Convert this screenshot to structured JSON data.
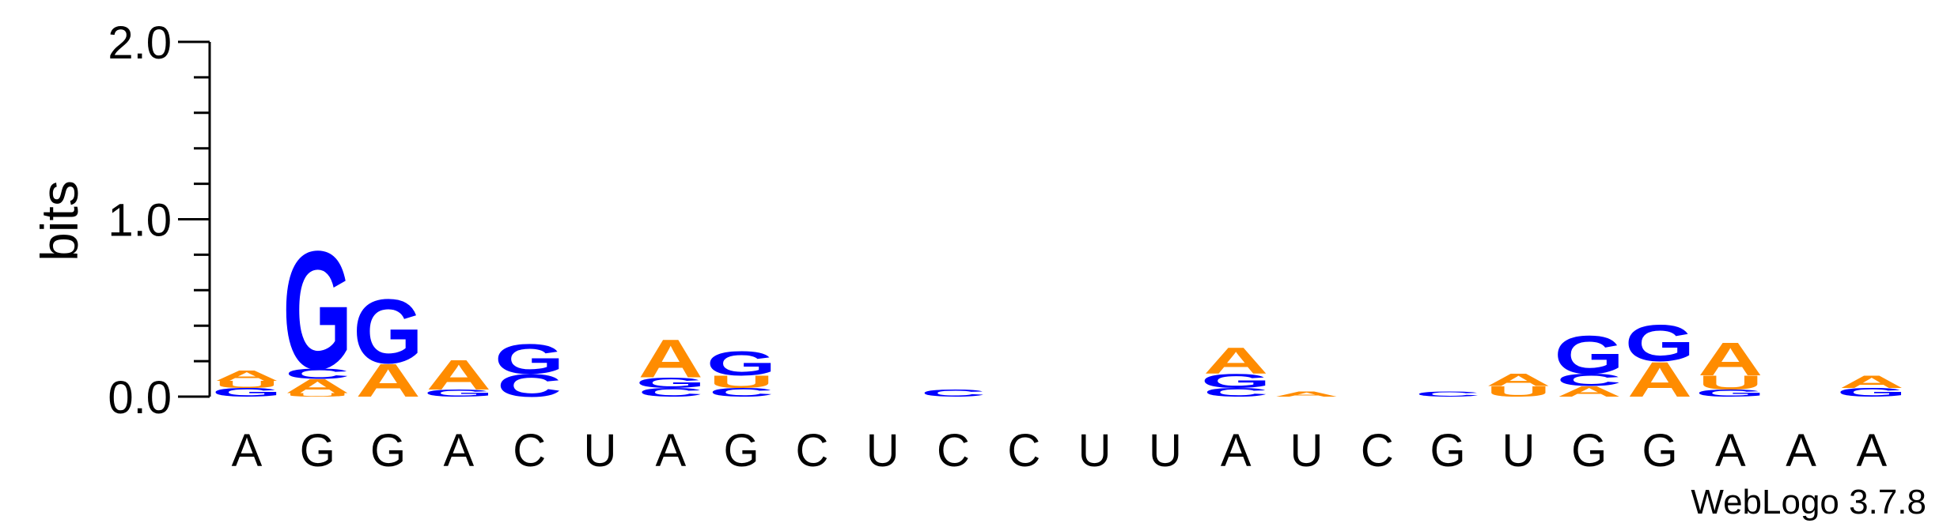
{
  "chart_data": {
    "type": "sequence-logo",
    "ylabel": "bits",
    "ylim": [
      0,
      2.0
    ],
    "yticks": [
      "0.0",
      "1.0",
      "2.0"
    ],
    "credit": "WebLogo 3.7.8",
    "colors": {
      "A": "#ff8c00",
      "U": "#ff8c00",
      "G": "#0000ff",
      "C": "#0000ff"
    },
    "positions": [
      {
        "label": "A",
        "stack": [
          {
            "letter": "G",
            "bits": 0.05
          },
          {
            "letter": "U",
            "bits": 0.04
          },
          {
            "letter": "A",
            "bits": 0.06
          }
        ]
      },
      {
        "label": "G",
        "stack": [
          {
            "letter": "U",
            "bits": 0.02
          },
          {
            "letter": "A",
            "bits": 0.08
          },
          {
            "letter": "C",
            "bits": 0.06
          },
          {
            "letter": "G",
            "bits": 0.68
          }
        ]
      },
      {
        "label": "G",
        "stack": [
          {
            "letter": "A",
            "bits": 0.19
          },
          {
            "letter": "G",
            "bits": 0.37
          }
        ]
      },
      {
        "label": "A",
        "stack": [
          {
            "letter": "G",
            "bits": 0.04
          },
          {
            "letter": "A",
            "bits": 0.17
          }
        ]
      },
      {
        "label": "C",
        "stack": [
          {
            "letter": "C",
            "bits": 0.13
          },
          {
            "letter": "G",
            "bits": 0.17
          }
        ]
      },
      {
        "label": "U",
        "stack": []
      },
      {
        "label": "A",
        "stack": [
          {
            "letter": "C",
            "bits": 0.05
          },
          {
            "letter": "G",
            "bits": 0.06
          },
          {
            "letter": "A",
            "bits": 0.22
          }
        ]
      },
      {
        "label": "G",
        "stack": [
          {
            "letter": "C",
            "bits": 0.05
          },
          {
            "letter": "U",
            "bits": 0.07
          },
          {
            "letter": "G",
            "bits": 0.14
          }
        ]
      },
      {
        "label": "C",
        "stack": []
      },
      {
        "label": "U",
        "stack": []
      },
      {
        "label": "C",
        "stack": [
          {
            "letter": "C",
            "bits": 0.04
          }
        ]
      },
      {
        "label": "C",
        "stack": []
      },
      {
        "label": "U",
        "stack": []
      },
      {
        "label": "U",
        "stack": []
      },
      {
        "label": "A",
        "stack": [
          {
            "letter": "C",
            "bits": 0.05
          },
          {
            "letter": "G",
            "bits": 0.08
          },
          {
            "letter": "A",
            "bits": 0.15
          }
        ]
      },
      {
        "label": "U",
        "stack": [
          {
            "letter": "A",
            "bits": 0.03
          }
        ]
      },
      {
        "label": "C",
        "stack": []
      },
      {
        "label": "G",
        "stack": [
          {
            "letter": "C",
            "bits": 0.03
          }
        ]
      },
      {
        "label": "U",
        "stack": [
          {
            "letter": "U",
            "bits": 0.06
          },
          {
            "letter": "A",
            "bits": 0.07
          }
        ]
      },
      {
        "label": "G",
        "stack": [
          {
            "letter": "A",
            "bits": 0.06
          },
          {
            "letter": "C",
            "bits": 0.07
          },
          {
            "letter": "G",
            "bits": 0.22
          }
        ]
      },
      {
        "label": "G",
        "stack": [
          {
            "letter": "A",
            "bits": 0.2
          },
          {
            "letter": "G",
            "bits": 0.21
          }
        ]
      },
      {
        "label": "A",
        "stack": [
          {
            "letter": "G",
            "bits": 0.04
          },
          {
            "letter": "U",
            "bits": 0.08
          },
          {
            "letter": "A",
            "bits": 0.19
          }
        ]
      },
      {
        "label": "A",
        "stack": []
      },
      {
        "label": "A",
        "stack": [
          {
            "letter": "G",
            "bits": 0.05
          },
          {
            "letter": "A",
            "bits": 0.07
          }
        ]
      }
    ]
  }
}
